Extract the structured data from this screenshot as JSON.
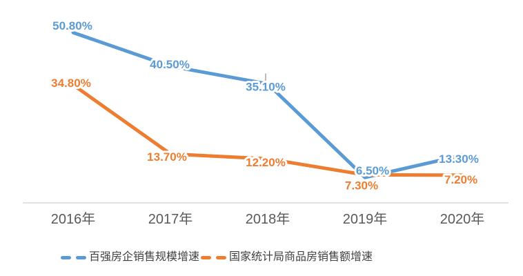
{
  "chart_data": {
    "type": "line",
    "categories": [
      "2016年",
      "2017年",
      "2018年",
      "2019年",
      "2020年"
    ],
    "series": [
      {
        "name": "百强房企销售规模增速",
        "color": "#5B9BD5",
        "values": [
          50.8,
          40.5,
          35.1,
          6.5,
          13.3
        ],
        "labels": [
          "50.80%",
          "40.50%",
          "35.10%",
          "6.50%",
          "13.30%"
        ]
      },
      {
        "name": "国家统计局商品房销售额增速",
        "color": "#ED7D31",
        "values": [
          34.8,
          13.7,
          12.2,
          7.3,
          7.2
        ],
        "labels": [
          "34.80%",
          "13.70%",
          "12.20%",
          "7.30%",
          "7.20%"
        ]
      }
    ],
    "title": "",
    "xlabel": "",
    "ylabel": "",
    "ylim": [
      0,
      55
    ],
    "grid": false,
    "legend_position": "bottom",
    "data_labels_shown": true,
    "colors": {
      "axis_line": "#D9D9D9",
      "tick_label": "#595959",
      "legend_text": "#404040",
      "leader_line": "#A6A6A6",
      "background": "#FFFFFF"
    }
  }
}
